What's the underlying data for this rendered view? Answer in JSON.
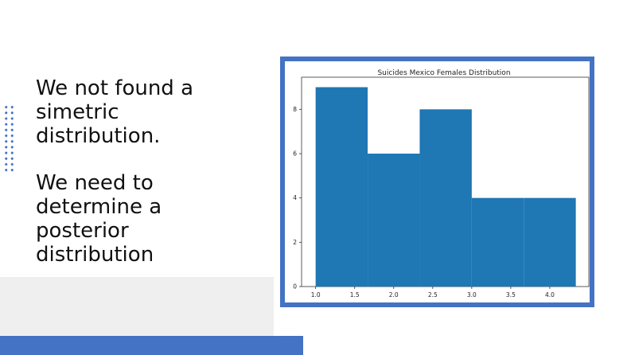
{
  "slide": {
    "paragraphs": [
      "We not found a\nsimetric\ndistribution.",
      "We need to\ndetermine a\nposterior\ndistribution"
    ],
    "accent_color": "#4472c4"
  },
  "chart_data": {
    "type": "bar",
    "title": "Suicides Mexico Females Distribution",
    "xlabel": "",
    "ylabel": "",
    "bin_edges": [
      1.0,
      1.6667,
      2.3333,
      3.0,
      3.6667,
      4.3333
    ],
    "values": [
      9,
      6,
      8,
      4,
      4
    ],
    "x_ticks": [
      "1.0",
      "1.5",
      "2.0",
      "2.5",
      "3.0",
      "3.5",
      "4.0"
    ],
    "y_ticks": [
      "0",
      "2",
      "4",
      "6",
      "8"
    ],
    "xlim": [
      0.82,
      4.5
    ],
    "ylim": [
      0,
      9.45
    ],
    "bar_color": "#1f77b4",
    "grid": false,
    "legend": "none"
  }
}
